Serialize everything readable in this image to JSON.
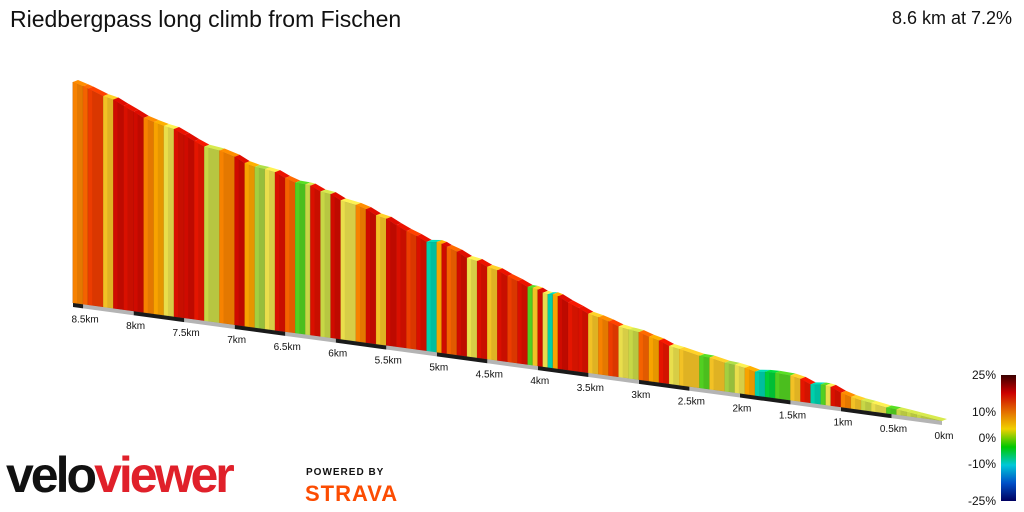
{
  "header": {
    "title": "Riedbergpass long climb from Fischen",
    "summary": "8.6 km at 7.2%"
  },
  "branding": {
    "logo_part1": "velo",
    "logo_part2": "viewer",
    "powered_by": "POWERED BY",
    "strava": "STRAVA",
    "logo_colors": {
      "velo": "#111111",
      "viewer": "#e0202a",
      "strava": "#fc4c02"
    }
  },
  "legend": {
    "labels": [
      "25%",
      "10%",
      "0%",
      "-10%",
      "-25%"
    ],
    "stops": [
      25,
      10,
      0,
      -10,
      -25
    ],
    "colors": [
      "#3a0000",
      "#cc0000",
      "#e36a00",
      "#f0d000",
      "#00c800",
      "#00c8d8",
      "#0050c8",
      "#000060"
    ]
  },
  "chart_data": {
    "type": "area",
    "title": "Riedbergpass long climb from Fischen",
    "distance_km": 8.6,
    "average_gradient_pct": 7.2,
    "x_direction": "descending left to right",
    "x_tick_labels": [
      "8.5km",
      "8km",
      "7.5km",
      "7km",
      "6.5km",
      "6km",
      "5.5km",
      "5km",
      "4.5km",
      "4km",
      "3.5km",
      "3km",
      "2.5km",
      "2km",
      "1.5km",
      "1km",
      "0.5km",
      "0km"
    ],
    "x_ticks_km": [
      8.5,
      8,
      7.5,
      7,
      6.5,
      6,
      5.5,
      5,
      4.5,
      4,
      3.5,
      3,
      2.5,
      2,
      1.5,
      1,
      0.5,
      0
    ],
    "gradient_unit": "%",
    "segments": [
      {
        "km": 8.6,
        "grad": 7
      },
      {
        "km": 8.5,
        "grad": 7
      },
      {
        "km": 8.45,
        "grad": 8
      },
      {
        "km": 8.3,
        "grad": 9
      },
      {
        "km": 8.2,
        "grad": 5
      },
      {
        "km": 8.1,
        "grad": 12
      },
      {
        "km": 8.0,
        "grad": 11
      },
      {
        "km": 7.9,
        "grad": 12
      },
      {
        "km": 7.8,
        "grad": 7
      },
      {
        "km": 7.7,
        "grad": 6
      },
      {
        "km": 7.6,
        "grad": 4
      },
      {
        "km": 7.5,
        "grad": 11
      },
      {
        "km": 7.4,
        "grad": 12
      },
      {
        "km": 7.3,
        "grad": 10
      },
      {
        "km": 7.15,
        "grad": 3
      },
      {
        "km": 7.0,
        "grad": 7
      },
      {
        "km": 6.9,
        "grad": 12
      },
      {
        "km": 6.8,
        "grad": 6
      },
      {
        "km": 6.7,
        "grad": 2
      },
      {
        "km": 6.6,
        "grad": 4
      },
      {
        "km": 6.5,
        "grad": 11
      },
      {
        "km": 6.4,
        "grad": 8
      },
      {
        "km": 6.3,
        "grad": 1
      },
      {
        "km": 6.25,
        "grad": 3
      },
      {
        "km": 6.15,
        "grad": 11
      },
      {
        "km": 6.05,
        "grad": 3
      },
      {
        "km": 5.95,
        "grad": 12
      },
      {
        "km": 5.8,
        "grad": 4
      },
      {
        "km": 5.7,
        "grad": 7
      },
      {
        "km": 5.6,
        "grad": 12
      },
      {
        "km": 5.5,
        "grad": 5
      },
      {
        "km": 5.4,
        "grad": 12
      },
      {
        "km": 5.3,
        "grad": 11
      },
      {
        "km": 5.2,
        "grad": 9
      },
      {
        "km": 5.1,
        "grad": 11
      },
      {
        "km": 5.0,
        "grad": -3
      },
      {
        "km": 4.95,
        "grad": 6
      },
      {
        "km": 4.9,
        "grad": 12
      },
      {
        "km": 4.8,
        "grad": 8
      },
      {
        "km": 4.7,
        "grad": 12
      },
      {
        "km": 4.6,
        "grad": 4
      },
      {
        "km": 4.5,
        "grad": 11
      },
      {
        "km": 4.4,
        "grad": 5
      },
      {
        "km": 4.3,
        "grad": 11
      },
      {
        "km": 4.2,
        "grad": 9
      },
      {
        "km": 4.1,
        "grad": 11
      },
      {
        "km": 4.05,
        "grad": 1
      },
      {
        "km": 4.0,
        "grad": 5
      },
      {
        "km": 3.95,
        "grad": 12
      },
      {
        "km": 3.9,
        "grad": 4
      },
      {
        "km": 3.85,
        "grad": -3
      },
      {
        "km": 3.8,
        "grad": 6
      },
      {
        "km": 3.7,
        "grad": 12
      },
      {
        "km": 3.6,
        "grad": 10
      },
      {
        "km": 3.5,
        "grad": 11
      },
      {
        "km": 3.4,
        "grad": 5
      },
      {
        "km": 3.3,
        "grad": 7
      },
      {
        "km": 3.2,
        "grad": 9
      },
      {
        "km": 3.1,
        "grad": 4
      },
      {
        "km": 3.0,
        "grad": 3
      },
      {
        "km": 2.9,
        "grad": 8
      },
      {
        "km": 2.8,
        "grad": 6
      },
      {
        "km": 2.7,
        "grad": 10
      },
      {
        "km": 2.6,
        "grad": 4
      },
      {
        "km": 2.4,
        "grad": 5
      },
      {
        "km": 2.3,
        "grad": 1
      },
      {
        "km": 2.15,
        "grad": 5
      },
      {
        "km": 2.05,
        "grad": 2
      },
      {
        "km": 1.95,
        "grad": 4
      },
      {
        "km": 1.85,
        "grad": 6
      },
      {
        "km": 1.75,
        "grad": -3
      },
      {
        "km": 1.65,
        "grad": -1
      },
      {
        "km": 1.5,
        "grad": 1
      },
      {
        "km": 1.4,
        "grad": 5
      },
      {
        "km": 1.3,
        "grad": 10
      },
      {
        "km": 1.2,
        "grad": -3
      },
      {
        "km": 1.15,
        "grad": 1
      },
      {
        "km": 1.1,
        "grad": 4
      },
      {
        "km": 1.0,
        "grad": 11
      },
      {
        "km": 0.9,
        "grad": 7
      },
      {
        "km": 0.8,
        "grad": 5
      },
      {
        "km": 0.7,
        "grad": 3
      },
      {
        "km": 0.55,
        "grad": 4
      },
      {
        "km": 0.45,
        "grad": 1
      },
      {
        "km": 0.35,
        "grad": 3
      },
      {
        "km": 0.25,
        "grad": 3
      },
      {
        "km": 0.0,
        "grad": 3
      }
    ]
  }
}
